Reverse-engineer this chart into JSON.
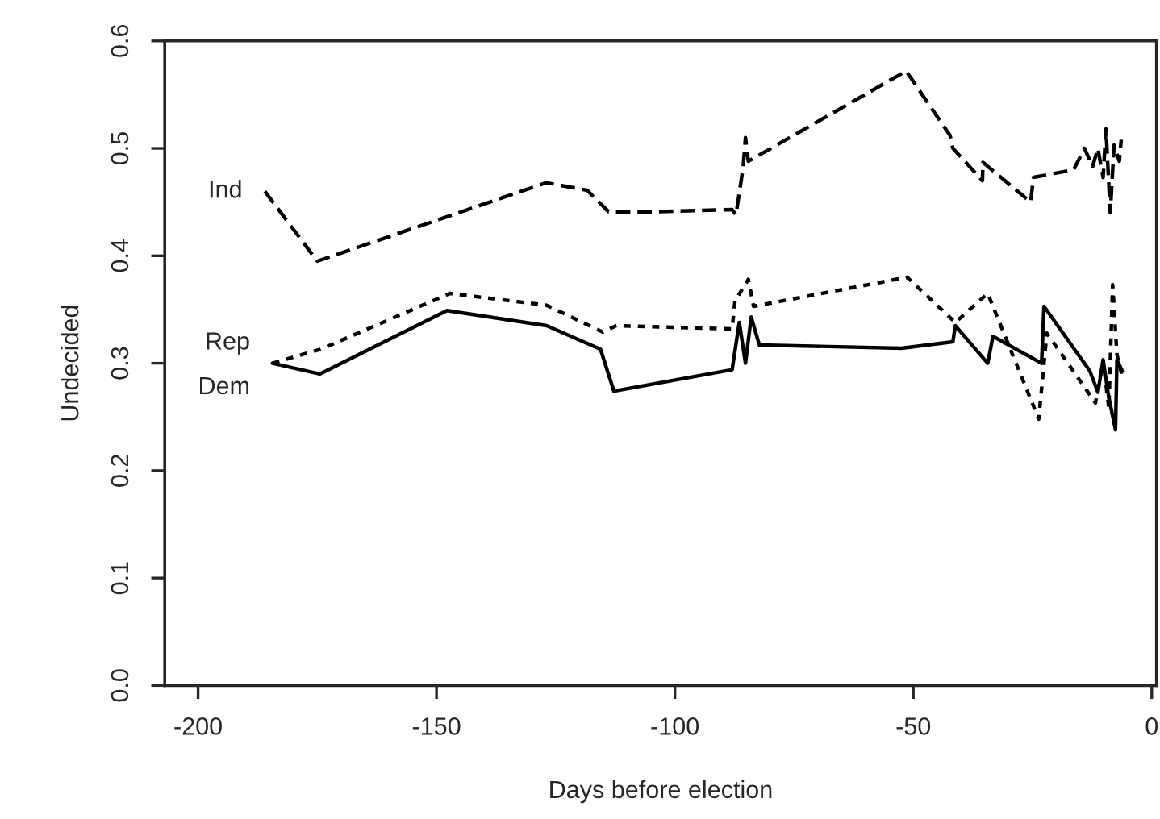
{
  "chart_data": {
    "type": "line",
    "xlabel": "Days before election",
    "ylabel": "Undecided",
    "xlim": [
      -207,
      1
    ],
    "ylim": [
      0,
      0.6
    ],
    "xticks": [
      -200,
      -150,
      -100,
      -50,
      0
    ],
    "yticks": [
      {
        "value": 0,
        "label": "0.0"
      },
      0.1,
      0.2,
      0.3,
      0.4,
      0.5,
      0.6
    ],
    "grid": false,
    "legend": false,
    "marker": "none",
    "series": [
      {
        "name": "Ind",
        "color": "#000000",
        "line_style": "dashed",
        "x": [
          -186,
          -175,
          -127,
          -118.4,
          -113.9,
          -104.3,
          -88,
          -87.2,
          -85.7,
          -85.2,
          -84.6,
          -51.5,
          -42.3,
          -41.7,
          -35.5,
          -35.4,
          -25.4,
          -24.8,
          -16.4,
          -14.1,
          -12.4,
          -11.3,
          -10.2,
          -9.6,
          -8.7,
          -7.9,
          -6.8,
          -6.4
        ],
        "values": [
          0.46,
          0.395,
          0.468,
          0.461,
          0.441,
          0.441,
          0.443,
          0.438,
          0.482,
          0.51,
          0.488,
          0.572,
          0.512,
          0.5,
          0.47,
          0.487,
          0.45,
          0.473,
          0.48,
          0.5,
          0.483,
          0.5,
          0.473,
          0.518,
          0.44,
          0.503,
          0.488,
          0.508
        ]
      },
      {
        "name": "Rep",
        "color": "#000000",
        "line_style": "dotted",
        "x": [
          -184.4,
          -174.3,
          -147.2,
          -126.9,
          -115.1,
          -112.3,
          -88,
          -87.4,
          -84.6,
          -83.5,
          -51.3,
          -41.2,
          -34.4,
          -23.7,
          -22,
          -11.8,
          -10.2,
          -9,
          -8.2,
          -7.3,
          -6.2
        ],
        "values": [
          0.3,
          0.313,
          0.365,
          0.354,
          0.329,
          0.335,
          0.332,
          0.358,
          0.378,
          0.353,
          0.38,
          0.338,
          0.365,
          0.248,
          0.328,
          0.263,
          0.303,
          0.258,
          0.373,
          0.308,
          0.288
        ]
      },
      {
        "name": "Dem",
        "color": "#000000",
        "line_style": "solid",
        "x": [
          -184.4,
          -174.5,
          -147.8,
          -126.9,
          -115.6,
          -112.8,
          -88,
          -86.5,
          -85.2,
          -84,
          -82.3,
          -52.5,
          -41.7,
          -41.2,
          -34.4,
          -33.3,
          -23.1,
          -22.6,
          -13,
          -11.3,
          -10.2,
          -9,
          -7.6,
          -7.3,
          -6.2
        ],
        "values": [
          0.3,
          0.29,
          0.349,
          0.335,
          0.313,
          0.274,
          0.294,
          0.338,
          0.3,
          0.343,
          0.317,
          0.314,
          0.32,
          0.335,
          0.3,
          0.325,
          0.3,
          0.353,
          0.293,
          0.273,
          0.303,
          0.268,
          0.238,
          0.303,
          0.293
        ]
      }
    ]
  }
}
